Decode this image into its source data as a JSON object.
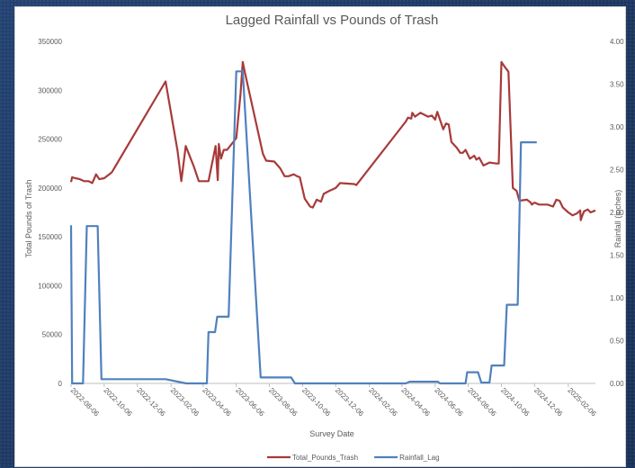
{
  "chart_data": {
    "type": "line",
    "title": "Lagged Rainfall vs Pounds of Trash",
    "xlabel": "Survey Date",
    "ylabel": "Total Pounds of Trash",
    "y2label": "Rainfall (inches)",
    "ylim": [
      0,
      350000
    ],
    "y2lim": [
      0,
      4.0
    ],
    "xlim": [
      "2022-08-06",
      "2025-03-28"
    ],
    "grid": false,
    "legend": "bottom",
    "x_ticks": [
      "2022-08-06",
      "2022-10-06",
      "2022-12-06",
      "2023-02-06",
      "2023-04-06",
      "2023-06-06",
      "2023-08-06",
      "2023-10-06",
      "2023-12-06",
      "2024-02-06",
      "2024-04-06",
      "2024-06-06",
      "2024-08-06",
      "2024-10-06",
      "2024-12-06",
      "2025-02-06"
    ],
    "y_ticks": [
      "0",
      "50000",
      "100000",
      "150000",
      "200000",
      "250000",
      "300000",
      "350000"
    ],
    "y2_ticks": [
      "0.00",
      "0.50",
      "1.00",
      "1.50",
      "2.00",
      "2.50",
      "3.00",
      "3.50",
      "4.00"
    ],
    "series": [
      {
        "name": "Total_Pounds_Trash",
        "axis": "left",
        "color": "#a83a3a",
        "points": [
          [
            "2022-08-06",
            206000
          ],
          [
            "2022-08-08",
            211000
          ],
          [
            "2022-08-14",
            210000
          ],
          [
            "2022-08-22",
            209000
          ],
          [
            "2022-08-30",
            207000
          ],
          [
            "2022-09-07",
            207000
          ],
          [
            "2022-09-14",
            205000
          ],
          [
            "2022-09-21",
            214000
          ],
          [
            "2022-09-27",
            209000
          ],
          [
            "2022-10-06",
            210000
          ],
          [
            "2022-10-20",
            216000
          ],
          [
            "2023-01-27",
            309000
          ],
          [
            "2023-02-18",
            238000
          ],
          [
            "2023-02-25",
            207000
          ],
          [
            "2023-03-05",
            243000
          ],
          [
            "2023-03-20",
            222000
          ],
          [
            "2023-03-29",
            207000
          ],
          [
            "2023-04-16",
            207000
          ],
          [
            "2023-04-29",
            243000
          ],
          [
            "2023-05-03",
            208000
          ],
          [
            "2023-05-05",
            245000
          ],
          [
            "2023-05-09",
            230000
          ],
          [
            "2023-05-14",
            239000
          ],
          [
            "2023-05-20",
            239000
          ],
          [
            "2023-06-06",
            251000
          ],
          [
            "2023-06-14",
            297000
          ],
          [
            "2023-06-18",
            329000
          ],
          [
            "2023-06-22",
            318000
          ],
          [
            "2023-07-25",
            235000
          ],
          [
            "2023-07-31",
            228000
          ],
          [
            "2023-08-15",
            227000
          ],
          [
            "2023-08-26",
            220000
          ],
          [
            "2023-09-03",
            212000
          ],
          [
            "2023-09-10",
            212000
          ],
          [
            "2023-09-20",
            214000
          ],
          [
            "2023-09-26",
            212000
          ],
          [
            "2023-10-01",
            211000
          ],
          [
            "2023-10-10",
            189000
          ],
          [
            "2023-10-20",
            181000
          ],
          [
            "2023-10-25",
            180000
          ],
          [
            "2023-11-01",
            188000
          ],
          [
            "2023-11-09",
            186000
          ],
          [
            "2023-11-14",
            194000
          ],
          [
            "2023-11-24",
            197000
          ],
          [
            "2023-12-06",
            200000
          ],
          [
            "2023-12-14",
            205000
          ],
          [
            "2024-01-09",
            204000
          ],
          [
            "2024-01-13",
            203000
          ],
          [
            "2024-04-13",
            268000
          ],
          [
            "2024-04-17",
            272000
          ],
          [
            "2024-04-23",
            271000
          ],
          [
            "2024-04-25",
            277000
          ],
          [
            "2024-04-30",
            273000
          ],
          [
            "2024-05-10",
            277000
          ],
          [
            "2024-05-24",
            273000
          ],
          [
            "2024-05-31",
            274000
          ],
          [
            "2024-06-06",
            270000
          ],
          [
            "2024-06-10",
            278000
          ],
          [
            "2024-06-21",
            260000
          ],
          [
            "2024-06-26",
            266000
          ],
          [
            "2024-07-01",
            265000
          ],
          [
            "2024-07-06",
            247000
          ],
          [
            "2024-07-16",
            241000
          ],
          [
            "2024-07-22",
            236000
          ],
          [
            "2024-07-27",
            236000
          ],
          [
            "2024-08-01",
            239000
          ],
          [
            "2024-08-09",
            230000
          ],
          [
            "2024-08-17",
            233000
          ],
          [
            "2024-08-21",
            229000
          ],
          [
            "2024-08-26",
            231000
          ],
          [
            "2024-09-03",
            223000
          ],
          [
            "2024-09-14",
            226000
          ],
          [
            "2024-09-27",
            225000
          ],
          [
            "2024-10-01",
            225000
          ],
          [
            "2024-10-06",
            329000
          ],
          [
            "2024-10-12",
            324000
          ],
          [
            "2024-10-19",
            319000
          ],
          [
            "2024-10-27",
            200000
          ],
          [
            "2024-11-03",
            197000
          ],
          [
            "2024-11-08",
            187000
          ],
          [
            "2024-11-22",
            188000
          ],
          [
            "2024-11-29",
            185000
          ],
          [
            "2024-12-01",
            183000
          ],
          [
            "2024-12-06",
            185000
          ],
          [
            "2024-12-14",
            183000
          ],
          [
            "2024-12-30",
            183000
          ],
          [
            "2025-01-09",
            181000
          ],
          [
            "2025-01-15",
            188000
          ],
          [
            "2025-01-21",
            187000
          ],
          [
            "2025-01-27",
            180000
          ],
          [
            "2025-02-06",
            175000
          ],
          [
            "2025-02-14",
            172000
          ],
          [
            "2025-02-22",
            174000
          ],
          [
            "2025-02-28",
            177000
          ],
          [
            "2025-03-01",
            167000
          ],
          [
            "2025-03-04",
            172000
          ],
          [
            "2025-03-07",
            176000
          ],
          [
            "2025-03-14",
            178000
          ],
          [
            "2025-03-19",
            175000
          ],
          [
            "2025-03-28",
            177000
          ]
        ]
      },
      {
        "name": "Rainfall_Lag",
        "axis": "right",
        "color": "#4f81bd",
        "points": [
          [
            "2022-08-06",
            1.85
          ],
          [
            "2022-08-08",
            0
          ],
          [
            "2022-08-28",
            0
          ],
          [
            "2022-09-04",
            1.84
          ],
          [
            "2022-09-24",
            1.84
          ],
          [
            "2022-10-01",
            0.05
          ],
          [
            "2023-01-27",
            0.05
          ],
          [
            "2023-03-06",
            0
          ],
          [
            "2023-04-13",
            0
          ],
          [
            "2023-04-16",
            0.6
          ],
          [
            "2023-04-28",
            0.6
          ],
          [
            "2023-05-02",
            0.78
          ],
          [
            "2023-05-23",
            0.78
          ],
          [
            "2023-06-06",
            3.65
          ],
          [
            "2023-06-18",
            3.65
          ],
          [
            "2023-07-21",
            0.07
          ],
          [
            "2023-09-15",
            0.07
          ],
          [
            "2023-09-22",
            0
          ],
          [
            "2024-04-13",
            0
          ],
          [
            "2024-04-20",
            0.02
          ],
          [
            "2024-06-11",
            0.02
          ],
          [
            "2024-06-15",
            0
          ],
          [
            "2024-08-01",
            0
          ],
          [
            "2024-08-04",
            0.13
          ],
          [
            "2024-08-24",
            0.13
          ],
          [
            "2024-08-30",
            0.01
          ],
          [
            "2024-09-14",
            0.01
          ],
          [
            "2024-09-18",
            0.21
          ],
          [
            "2024-10-11",
            0.21
          ],
          [
            "2024-10-16",
            0.92
          ],
          [
            "2024-11-05",
            0.92
          ],
          [
            "2024-11-11",
            2.82
          ],
          [
            "2024-12-10",
            2.82
          ]
        ]
      }
    ]
  }
}
